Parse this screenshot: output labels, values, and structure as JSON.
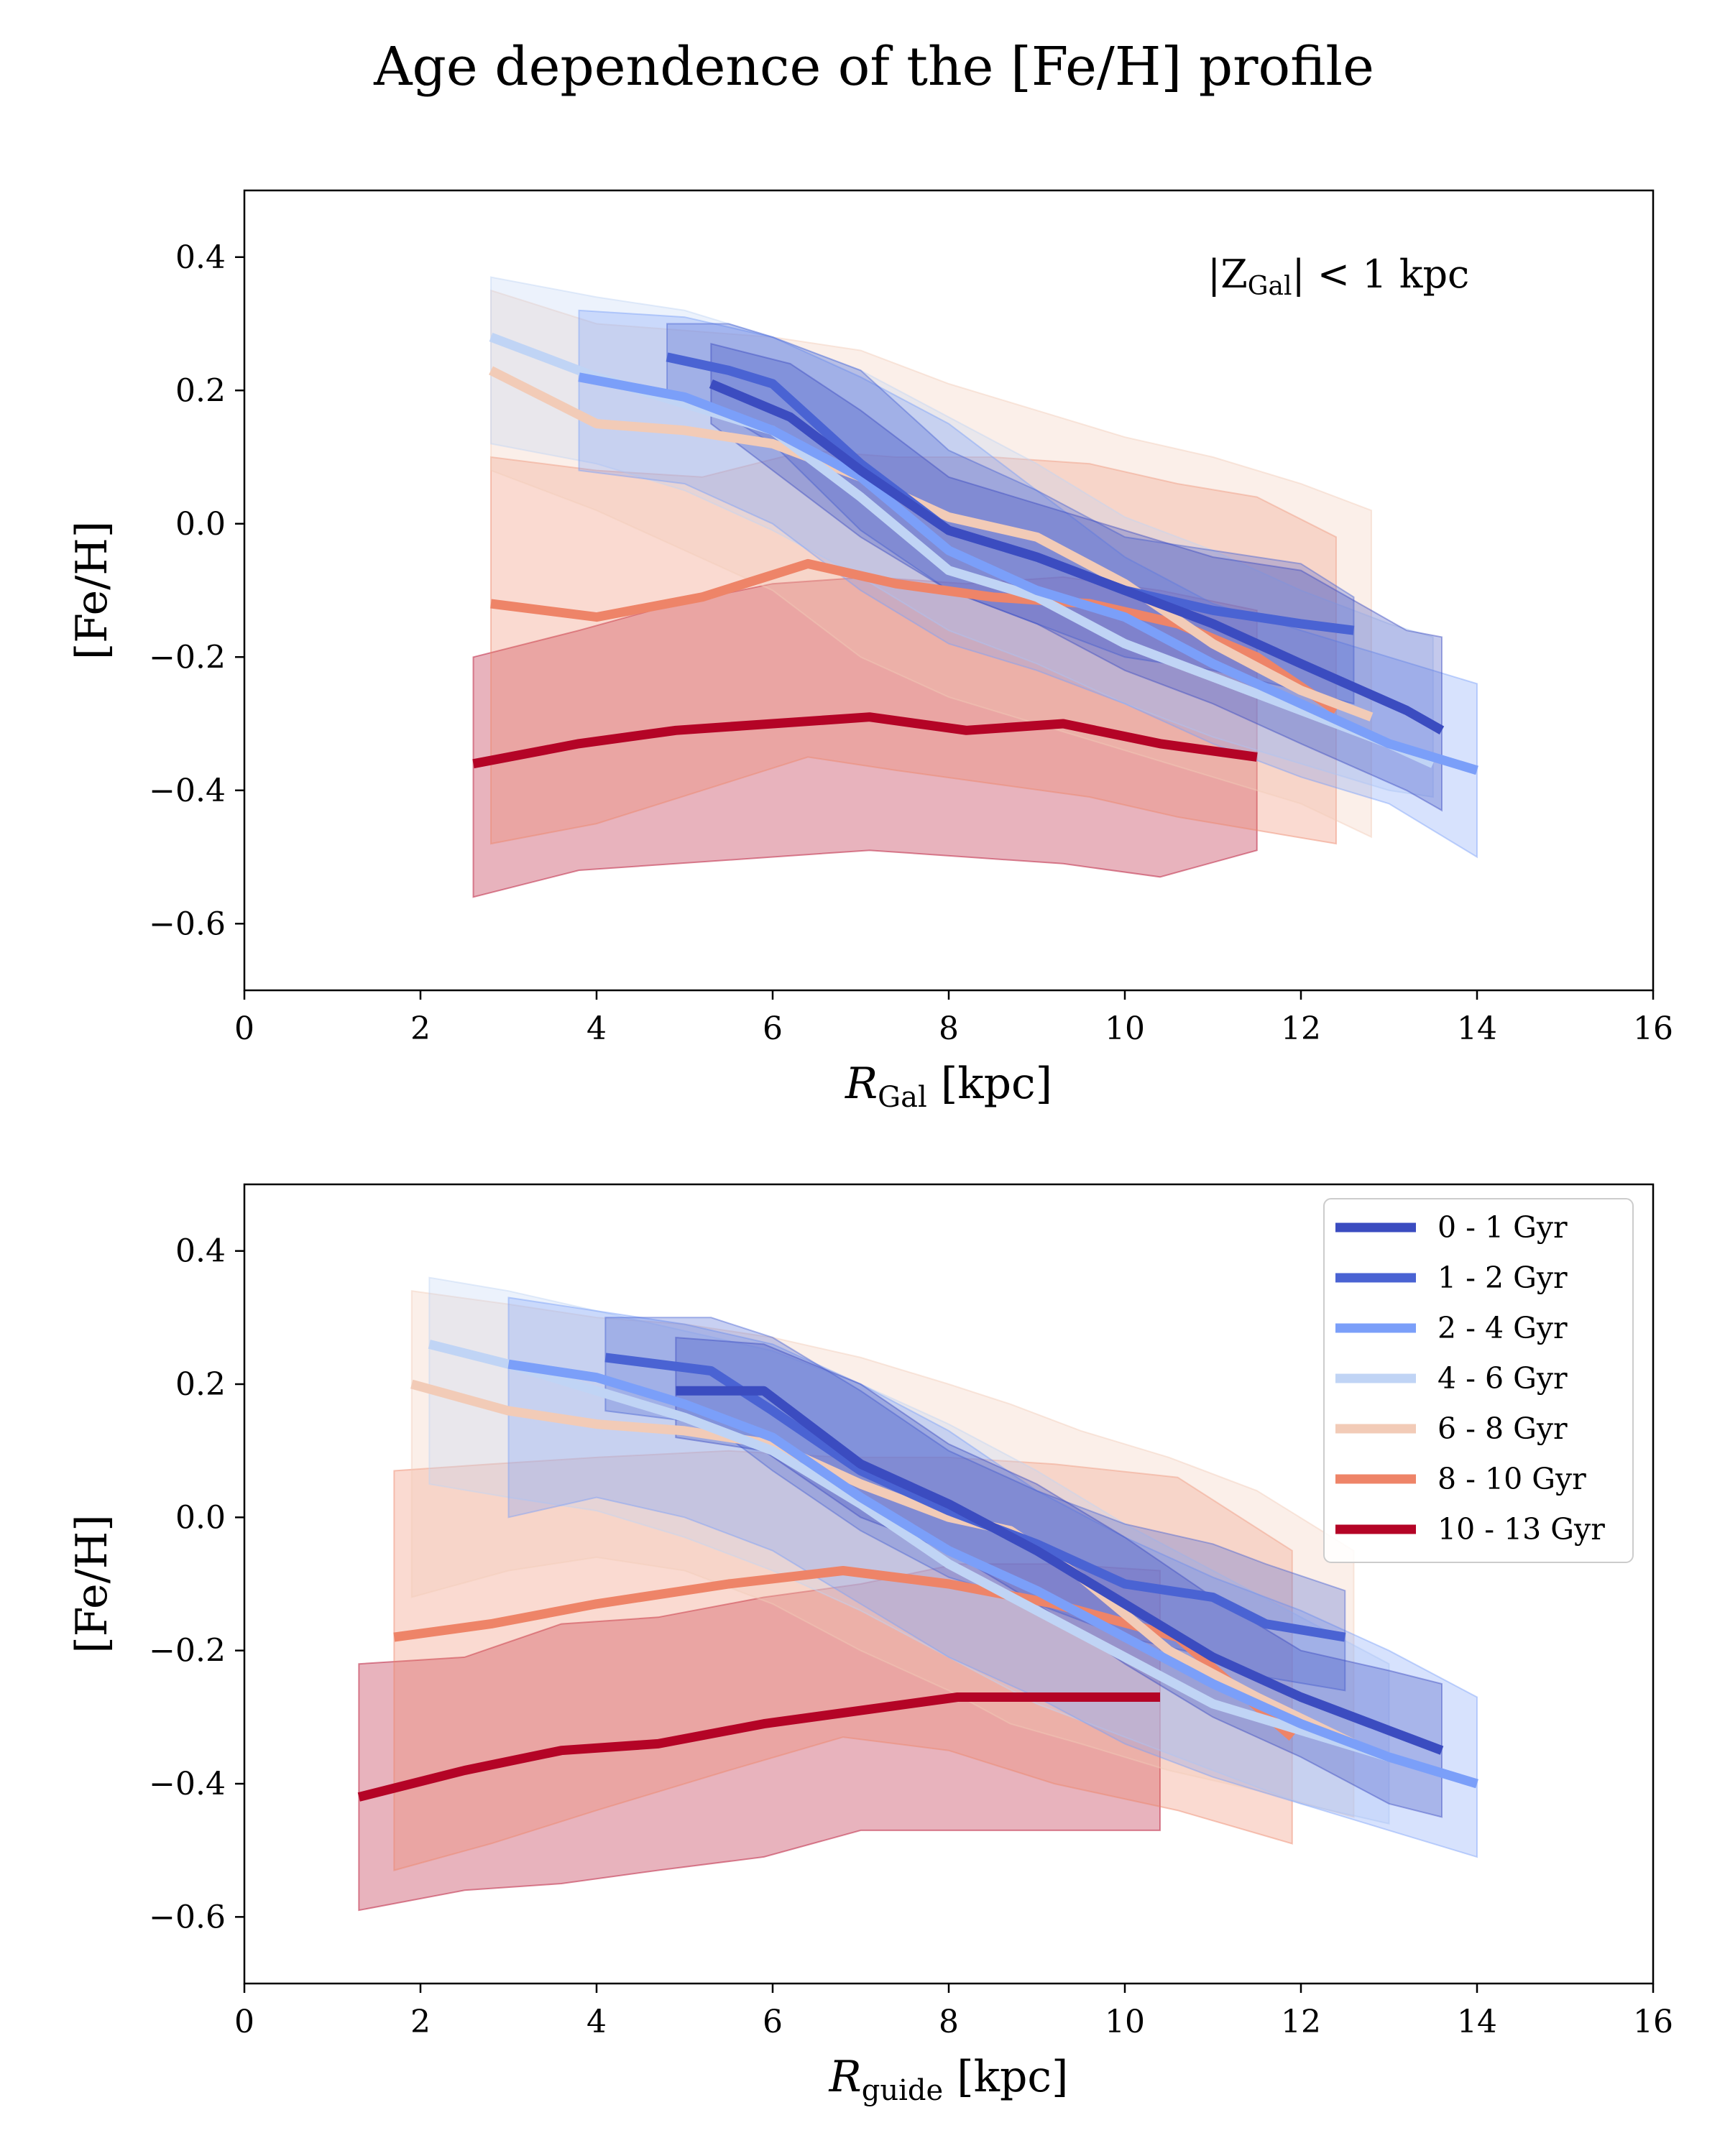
{
  "title": "Age dependence of the [Fe/H] profile",
  "colors": {
    "0 - 1 Gyr": "#3b4cc0",
    "1 - 2 Gyr": "#4a63d3",
    "2 - 4 Gyr": "#7b9ff9",
    "4 - 6 Gyr": "#c0d4f5",
    "6 - 8 Gyr": "#f2cbb7",
    "8 - 10 Gyr": "#ee8468",
    "10 - 13 Gyr": "#b40426"
  },
  "chart_data": [
    {
      "type": "line",
      "panel": "top",
      "xlabel_main": "R",
      "xlabel_sub": "Gal",
      "xlabel_unit": " [kpc]",
      "ylabel": "[Fe/H]",
      "xlim": [
        0,
        16
      ],
      "ylim": [
        -0.7,
        0.5
      ],
      "xticks": [
        0,
        2,
        4,
        6,
        8,
        10,
        12,
        14,
        16
      ],
      "yticks": [
        0.4,
        0.2,
        0.0,
        -0.2,
        -0.4,
        -0.6
      ],
      "annotation": {
        "prefix": "|Z",
        "sub": "Gal",
        "suffix": "| < 1 kpc"
      },
      "series": [
        {
          "name": "0 - 1 Gyr",
          "x": [
            5.3,
            6.2,
            7.0,
            8.0,
            9.0,
            10.0,
            11.0,
            12.0,
            13.2,
            13.6
          ],
          "y": [
            0.21,
            0.16,
            0.08,
            -0.01,
            -0.05,
            -0.1,
            -0.15,
            -0.21,
            -0.28,
            -0.31
          ],
          "upper": [
            0.27,
            0.24,
            0.17,
            0.07,
            0.03,
            -0.01,
            -0.05,
            -0.07,
            -0.16,
            -0.17
          ],
          "lower": [
            0.15,
            0.06,
            -0.02,
            -0.1,
            -0.15,
            -0.22,
            -0.27,
            -0.33,
            -0.4,
            -0.43
          ]
        },
        {
          "name": "1 - 2 Gyr",
          "x": [
            4.8,
            5.5,
            6.0,
            7.0,
            8.0,
            9.0,
            10.0,
            11.0,
            12.0,
            12.6
          ],
          "y": [
            0.25,
            0.23,
            0.21,
            0.09,
            -0.01,
            -0.05,
            -0.1,
            -0.13,
            -0.15,
            -0.16
          ],
          "upper": [
            0.3,
            0.3,
            0.28,
            0.23,
            0.11,
            0.05,
            -0.02,
            -0.04,
            -0.06,
            -0.11
          ],
          "lower": [
            0.2,
            0.16,
            0.12,
            -0.01,
            -0.1,
            -0.15,
            -0.2,
            -0.22,
            -0.25,
            -0.27
          ]
        },
        {
          "name": "2 - 4 Gyr",
          "x": [
            3.8,
            5.0,
            6.0,
            7.0,
            8.0,
            9.0,
            10.0,
            11.0,
            12.0,
            13.0,
            14.0
          ],
          "y": [
            0.22,
            0.19,
            0.14,
            0.07,
            -0.04,
            -0.1,
            -0.14,
            -0.21,
            -0.27,
            -0.33,
            -0.37
          ],
          "upper": [
            0.32,
            0.31,
            0.28,
            0.22,
            0.15,
            0.05,
            -0.05,
            -0.12,
            -0.16,
            -0.2,
            -0.24
          ],
          "lower": [
            0.08,
            0.06,
            0.0,
            -0.1,
            -0.18,
            -0.22,
            -0.27,
            -0.33,
            -0.38,
            -0.42,
            -0.5
          ]
        },
        {
          "name": "4 - 6 Gyr",
          "x": [
            2.8,
            4.0,
            5.0,
            6.0,
            7.0,
            8.0,
            9.0,
            10.0,
            11.0,
            12.0,
            13.0,
            13.5
          ],
          "y": [
            0.28,
            0.22,
            0.18,
            0.14,
            0.04,
            -0.07,
            -0.11,
            -0.18,
            -0.23,
            -0.28,
            -0.33,
            -0.36
          ],
          "upper": [
            0.37,
            0.34,
            0.32,
            0.28,
            0.23,
            0.16,
            0.09,
            0.01,
            -0.04,
            -0.1,
            -0.15,
            -0.17
          ],
          "lower": [
            0.12,
            0.09,
            0.05,
            -0.01,
            -0.08,
            -0.16,
            -0.21,
            -0.27,
            -0.32,
            -0.36,
            -0.4,
            -0.41
          ]
        },
        {
          "name": "6 - 8 Gyr",
          "x": [
            2.8,
            4.0,
            5.0,
            6.0,
            7.0,
            8.0,
            9.0,
            10.0,
            11.0,
            12.0,
            12.8
          ],
          "y": [
            0.23,
            0.15,
            0.14,
            0.12,
            0.07,
            0.01,
            -0.02,
            -0.09,
            -0.18,
            -0.25,
            -0.29
          ],
          "upper": [
            0.35,
            0.3,
            0.29,
            0.28,
            0.26,
            0.21,
            0.17,
            0.13,
            0.1,
            0.06,
            0.02
          ],
          "lower": [
            0.08,
            0.02,
            -0.04,
            -0.1,
            -0.2,
            -0.26,
            -0.3,
            -0.34,
            -0.38,
            -0.42,
            -0.47
          ]
        },
        {
          "name": "8 - 10 Gyr",
          "x": [
            2.8,
            4.0,
            5.2,
            6.4,
            7.4,
            8.5,
            9.6,
            10.6,
            11.5,
            12.4
          ],
          "y": [
            -0.12,
            -0.14,
            -0.11,
            -0.06,
            -0.09,
            -0.11,
            -0.12,
            -0.15,
            -0.2,
            -0.28
          ],
          "upper": [
            0.1,
            0.08,
            0.07,
            0.11,
            0.1,
            0.1,
            0.09,
            0.06,
            0.04,
            -0.02
          ],
          "lower": [
            -0.48,
            -0.45,
            -0.4,
            -0.35,
            -0.37,
            -0.39,
            -0.41,
            -0.44,
            -0.46,
            -0.48
          ]
        },
        {
          "name": "10 - 13 Gyr",
          "x": [
            2.6,
            3.8,
            4.9,
            6.0,
            7.1,
            8.2,
            9.3,
            10.4,
            11.5
          ],
          "y": [
            -0.36,
            -0.33,
            -0.31,
            -0.3,
            -0.29,
            -0.31,
            -0.3,
            -0.33,
            -0.35
          ],
          "upper": [
            -0.2,
            -0.16,
            -0.12,
            -0.09,
            -0.08,
            -0.09,
            -0.08,
            -0.1,
            -0.13
          ],
          "lower": [
            -0.56,
            -0.52,
            -0.51,
            -0.5,
            -0.49,
            -0.5,
            -0.51,
            -0.53,
            -0.49
          ]
        }
      ]
    },
    {
      "type": "line",
      "panel": "bottom",
      "xlabel_main": "R",
      "xlabel_sub": "guide",
      "xlabel_unit": " [kpc]",
      "ylabel": "[Fe/H]",
      "xlim": [
        0,
        16
      ],
      "ylim": [
        -0.7,
        0.5
      ],
      "xticks": [
        0,
        2,
        4,
        6,
        8,
        10,
        12,
        14,
        16
      ],
      "yticks": [
        0.4,
        0.2,
        0.0,
        -0.2,
        -0.4,
        -0.6
      ],
      "legend": "top-right",
      "series": [
        {
          "name": "0 - 1 Gyr",
          "x": [
            4.9,
            5.9,
            7.0,
            8.0,
            9.0,
            10.0,
            11.0,
            12.0,
            13.0,
            13.6
          ],
          "y": [
            0.19,
            0.19,
            0.08,
            0.02,
            -0.05,
            -0.13,
            -0.21,
            -0.27,
            -0.32,
            -0.35
          ],
          "upper": [
            0.27,
            0.26,
            0.2,
            0.11,
            0.05,
            -0.03,
            -0.12,
            -0.2,
            -0.23,
            -0.25
          ],
          "lower": [
            0.12,
            0.1,
            0.0,
            -0.05,
            -0.13,
            -0.22,
            -0.3,
            -0.36,
            -0.43,
            -0.45
          ]
        },
        {
          "name": "1 - 2 Gyr",
          "x": [
            4.1,
            5.3,
            6.0,
            7.0,
            8.0,
            9.0,
            10.0,
            11.0,
            11.6,
            12.5
          ],
          "y": [
            0.24,
            0.22,
            0.16,
            0.07,
            0.01,
            -0.04,
            -0.1,
            -0.12,
            -0.16,
            -0.18
          ],
          "upper": [
            0.3,
            0.3,
            0.27,
            0.19,
            0.1,
            0.04,
            -0.01,
            -0.04,
            -0.07,
            -0.11
          ],
          "lower": [
            0.16,
            0.14,
            0.07,
            -0.02,
            -0.09,
            -0.13,
            -0.18,
            -0.21,
            -0.24,
            -0.26
          ]
        },
        {
          "name": "2 - 4 Gyr",
          "x": [
            3.0,
            4.0,
            5.0,
            6.0,
            7.0,
            8.0,
            9.0,
            10.0,
            11.0,
            12.0,
            13.0,
            14.0
          ],
          "y": [
            0.23,
            0.21,
            0.17,
            0.12,
            0.03,
            -0.05,
            -0.11,
            -0.18,
            -0.25,
            -0.31,
            -0.36,
            -0.4
          ],
          "upper": [
            0.33,
            0.31,
            0.29,
            0.26,
            0.2,
            0.13,
            0.04,
            -0.03,
            -0.09,
            -0.14,
            -0.2,
            -0.27
          ],
          "lower": [
            0.0,
            0.03,
            0.0,
            -0.05,
            -0.13,
            -0.21,
            -0.27,
            -0.34,
            -0.39,
            -0.43,
            -0.47,
            -0.51
          ]
        },
        {
          "name": "4 - 6 Gyr",
          "x": [
            2.1,
            3.0,
            4.0,
            5.0,
            6.0,
            7.0,
            8.0,
            9.0,
            10.0,
            11.0,
            12.0,
            13.0
          ],
          "y": [
            0.26,
            0.23,
            0.19,
            0.15,
            0.1,
            0.02,
            -0.07,
            -0.14,
            -0.21,
            -0.28,
            -0.32,
            -0.36
          ],
          "upper": [
            0.36,
            0.34,
            0.31,
            0.28,
            0.25,
            0.2,
            0.14,
            0.07,
            -0.01,
            -0.08,
            -0.15,
            -0.22
          ],
          "lower": [
            0.05,
            0.03,
            0.01,
            -0.03,
            -0.08,
            -0.14,
            -0.21,
            -0.28,
            -0.33,
            -0.38,
            -0.43,
            -0.46
          ]
        },
        {
          "name": "6 - 8 Gyr",
          "x": [
            1.9,
            3.0,
            4.0,
            5.0,
            6.0,
            7.0,
            8.0,
            8.7,
            9.5,
            10.5,
            11.5,
            12.6
          ],
          "y": [
            0.2,
            0.16,
            0.14,
            0.13,
            0.11,
            0.05,
            0.0,
            -0.02,
            -0.09,
            -0.2,
            -0.27,
            -0.34
          ],
          "upper": [
            0.34,
            0.32,
            0.3,
            0.29,
            0.27,
            0.24,
            0.2,
            0.17,
            0.13,
            0.09,
            0.04,
            -0.05
          ],
          "lower": [
            -0.12,
            -0.08,
            -0.06,
            -0.08,
            -0.13,
            -0.2,
            -0.26,
            -0.31,
            -0.34,
            -0.38,
            -0.41,
            -0.45
          ]
        },
        {
          "name": "8 - 10 Gyr",
          "x": [
            1.7,
            2.8,
            4.0,
            5.5,
            6.8,
            8.0,
            9.2,
            10.6,
            11.9
          ],
          "y": [
            -0.18,
            -0.16,
            -0.13,
            -0.1,
            -0.08,
            -0.1,
            -0.13,
            -0.18,
            -0.33
          ],
          "upper": [
            0.07,
            0.08,
            0.09,
            0.1,
            0.09,
            0.09,
            0.08,
            0.06,
            -0.05
          ],
          "lower": [
            -0.53,
            -0.49,
            -0.44,
            -0.38,
            -0.33,
            -0.35,
            -0.4,
            -0.44,
            -0.49
          ]
        },
        {
          "name": "10 - 13 Gyr",
          "x": [
            1.3,
            2.5,
            3.6,
            4.7,
            5.9,
            7.0,
            8.1,
            9.2,
            10.4
          ],
          "y": [
            -0.42,
            -0.38,
            -0.35,
            -0.34,
            -0.31,
            -0.29,
            -0.27,
            -0.27,
            -0.27
          ],
          "upper": [
            -0.22,
            -0.21,
            -0.16,
            -0.15,
            -0.12,
            -0.1,
            -0.07,
            -0.07,
            -0.08
          ],
          "lower": [
            -0.59,
            -0.56,
            -0.55,
            -0.53,
            -0.51,
            -0.47,
            -0.47,
            -0.47,
            -0.47
          ]
        }
      ]
    }
  ]
}
